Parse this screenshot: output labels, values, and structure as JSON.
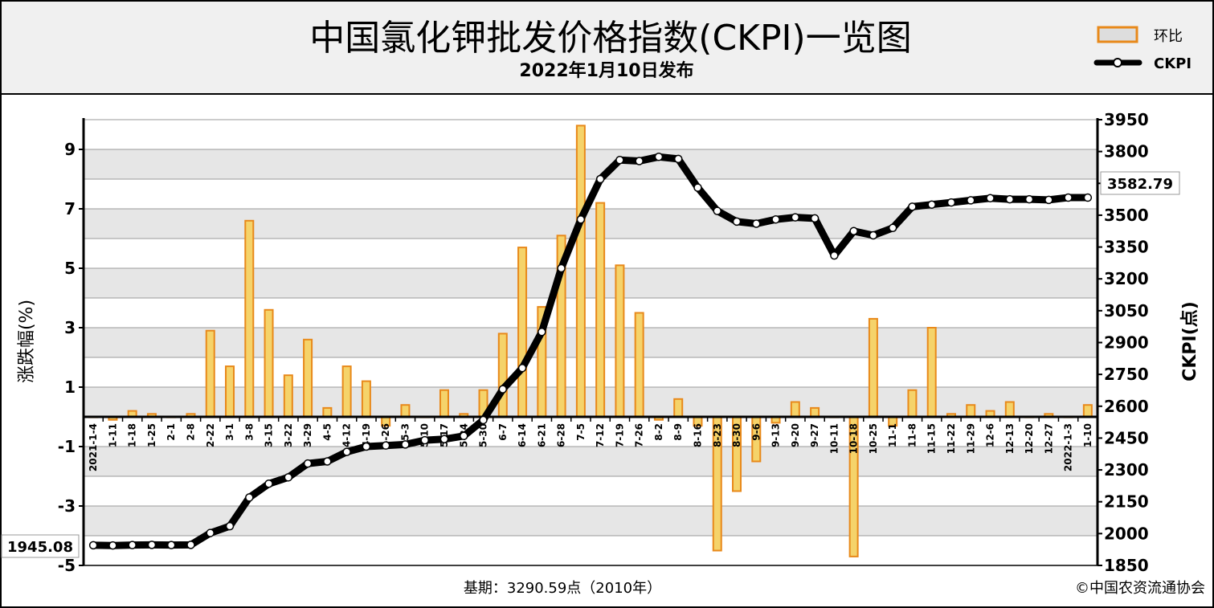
{
  "header": {
    "title": "中国氯化钾批发价格指数(CKPI)一览图",
    "subtitle": "2022年1月10日发布"
  },
  "footer": {
    "base_period": "基期：3290.59点（2010年）",
    "copyright": "©中国农资流通协会"
  },
  "legend": {
    "bar_label": "环比",
    "line_label": "CKPI"
  },
  "colors": {
    "bar_fill": "#f5d36a",
    "bar_stroke": "#e8891a",
    "line": "#000000",
    "band": "#e6e6e6"
  },
  "chart_data": {
    "type": "bar+line",
    "x": [
      "2021-1-4",
      "1-11",
      "1-18",
      "1-25",
      "2-1",
      "2-8",
      "2-22",
      "3-1",
      "3-8",
      "3-15",
      "3-22",
      "3-29",
      "4-5",
      "4-12",
      "4-19",
      "4-26",
      "5-3",
      "5-10",
      "5-17",
      "5-24",
      "5-30",
      "6-7",
      "6-14",
      "6-21",
      "6-28",
      "7-5",
      "7-12",
      "7-19",
      "7-26",
      "8-2",
      "8-9",
      "8-16",
      "8-23",
      "8-30",
      "9-6",
      "9-13",
      "9-20",
      "9-27",
      "10-11",
      "10-18",
      "10-25",
      "11-1",
      "11-8",
      "11-15",
      "11-22",
      "11-29",
      "12-6",
      "12-13",
      "12-20",
      "12-27",
      "2022-1-3",
      "1-10"
    ],
    "x_labels": [
      "2021-1-4",
      "1-11",
      "1-18",
      "1-25",
      "2-1",
      "2-8",
      "2-22",
      "3-1",
      "3-8",
      "3-15",
      "3-22",
      "3-29",
      "4-5",
      "4-12",
      "4-19",
      "4-26",
      "5-3",
      "5-10",
      "5-17",
      "5-24",
      "5-30",
      "6-7",
      "6-14",
      "6-21",
      "6-28",
      "7-5",
      "7-12",
      "7-19",
      "7-26",
      "8-2",
      "8-9",
      "8-16",
      "8-23",
      "8-30",
      "9-6",
      "9-13",
      "9-20",
      "9-27",
      "10-11",
      "10-18",
      "10-25",
      "11-1",
      "11-8",
      "11-15",
      "11-22",
      "11-29",
      "12-6",
      "12-13",
      "12-20",
      "12-27",
      "2022-1-3",
      "1-10"
    ],
    "series": [
      {
        "name": "环比",
        "type": "bar",
        "axis": "left",
        "values": [
          0.0,
          -0.1,
          0.2,
          0.1,
          0.0,
          0.1,
          2.9,
          1.7,
          6.6,
          3.6,
          1.4,
          2.6,
          0.3,
          1.7,
          1.2,
          -0.3,
          0.4,
          0.0,
          0.9,
          0.1,
          0.9,
          2.8,
          5.7,
          3.7,
          6.1,
          9.8,
          7.2,
          5.1,
          3.5,
          -0.1,
          0.6,
          -0.3,
          -4.5,
          -2.5,
          -1.5,
          -0.2,
          0.5,
          0.3,
          0.0,
          -4.7,
          3.3,
          -0.3,
          0.9,
          3.0,
          0.1,
          0.4,
          0.2,
          0.5,
          0.0,
          0.1,
          0.0,
          0.4
        ]
      },
      {
        "name": "CKPI",
        "type": "line",
        "axis": "right",
        "values": [
          1945.08,
          1944,
          1946,
          1947,
          1946,
          1947,
          2003,
          2035,
          2170,
          2235,
          2265,
          2330,
          2340,
          2385,
          2410,
          2415,
          2420,
          2440,
          2445,
          2460,
          2535,
          2680,
          2780,
          2950,
          3250,
          3480,
          3670,
          3760,
          3755,
          3775,
          3765,
          3630,
          3520,
          3470,
          3460,
          3480,
          3490,
          3485,
          3310,
          3425,
          3405,
          3440,
          3540,
          3550,
          3560,
          3570,
          3580,
          3575,
          3575,
          3572,
          3582.79,
          3582.79
        ]
      }
    ],
    "y_left": {
      "label": "涨跌幅(%)",
      "range": [
        -5,
        10
      ],
      "ticks": [
        -5,
        -3,
        -1,
        1,
        3,
        5,
        7,
        9
      ]
    },
    "y_right": {
      "label": "CKPI(点)",
      "range": [
        1850,
        3950
      ],
      "ticks": [
        1850,
        2000,
        2150,
        2300,
        2450,
        2600,
        2750,
        2900,
        3050,
        3200,
        3350,
        3500,
        3650,
        3800,
        3950
      ]
    },
    "annotations": {
      "first_value": "1945.08",
      "last_value": "3582.79"
    },
    "legend_position": "top-right",
    "grid": true
  }
}
